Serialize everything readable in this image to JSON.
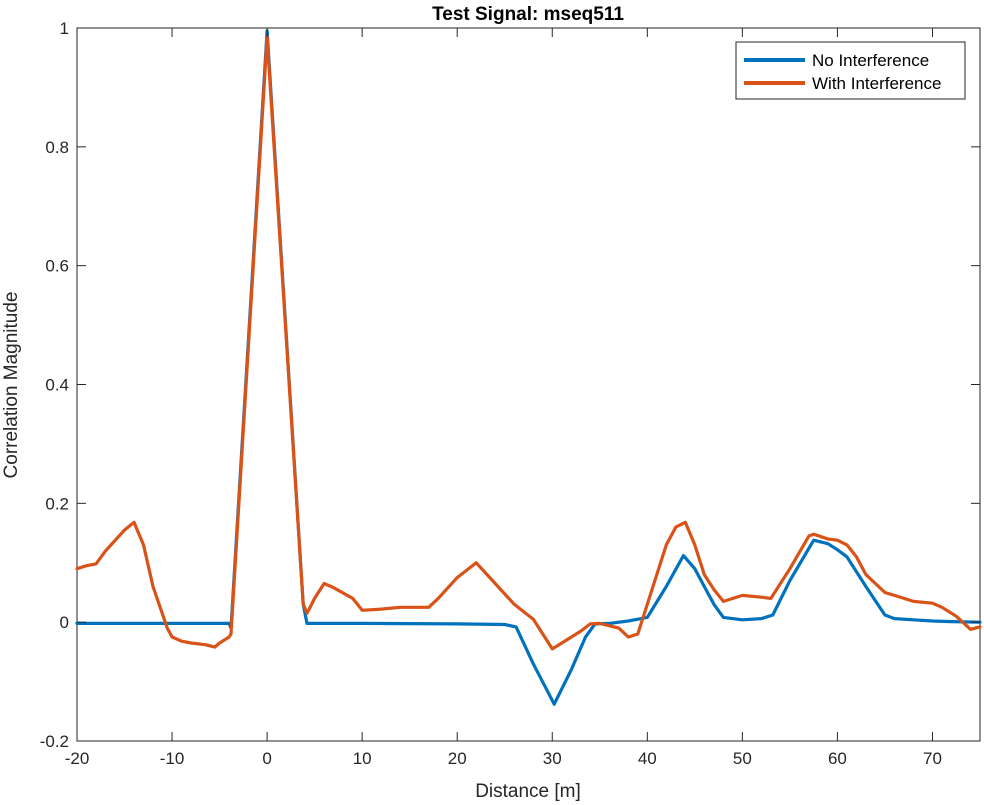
{
  "chart_data": {
    "type": "line",
    "title": "Test Signal: mseq511",
    "xlabel": "Distance [m]",
    "ylabel": "Correlation Magnitude",
    "xlim": [
      -20,
      75
    ],
    "ylim": [
      -0.2,
      1
    ],
    "xticks": [
      -20,
      -10,
      0,
      10,
      20,
      30,
      40,
      50,
      60,
      70
    ],
    "yticks": [
      -0.2,
      0,
      0.2,
      0.4,
      0.6,
      0.8,
      1
    ],
    "xtick_labels": [
      "-20",
      "-10",
      "0",
      "10",
      "20",
      "30",
      "40",
      "50",
      "60",
      "70"
    ],
    "ytick_labels": [
      "-0.2",
      "0",
      "0.2",
      "0.4",
      "0.6",
      "0.8",
      "1"
    ],
    "grid": false,
    "legend_position": "top-right",
    "series": [
      {
        "name": "No Interference",
        "color": "#0072BD",
        "x": [
          -20,
          -10,
          -4,
          -3.8,
          0,
          3.8,
          4.2,
          10,
          20,
          25,
          26.2,
          28,
          30.2,
          32,
          33.5,
          34.5,
          36,
          38,
          40,
          42,
          43.8,
          45,
          46,
          47,
          48,
          50,
          52,
          53.2,
          55,
          57.5,
          59,
          60,
          61,
          63,
          65,
          66,
          68,
          70,
          72,
          75
        ],
        "y": [
          -0.002,
          -0.002,
          -0.002,
          -0.01,
          0.995,
          0.03,
          -0.002,
          -0.002,
          -0.003,
          -0.004,
          -0.008,
          -0.07,
          -0.138,
          -0.08,
          -0.025,
          -0.003,
          -0.002,
          0.002,
          0.008,
          0.06,
          0.112,
          0.09,
          0.06,
          0.03,
          0.008,
          0.004,
          0.006,
          0.012,
          0.07,
          0.138,
          0.132,
          0.122,
          0.11,
          0.06,
          0.012,
          0.006,
          0.004,
          0.002,
          0.001,
          0.0
        ]
      },
      {
        "name": "With Interference",
        "color": "#D95319",
        "x": [
          -20,
          -19,
          -18,
          -17,
          -15,
          -14,
          -13,
          -12,
          -10.5,
          -10,
          -9,
          -8,
          -6.5,
          -5.5,
          -5,
          -4,
          -3.8,
          0,
          3.8,
          4.2,
          5,
          6,
          7,
          9,
          10,
          12,
          14,
          16,
          17,
          18,
          20,
          22,
          24,
          26,
          28,
          30,
          31,
          33,
          34,
          35,
          37,
          38,
          39,
          40,
          42,
          43,
          44,
          45,
          46,
          47,
          48,
          50,
          52,
          53,
          55,
          57,
          57.5,
          59,
          60,
          61,
          62,
          63,
          65,
          66,
          68,
          70,
          71,
          72.5,
          74,
          75
        ],
        "y": [
          0.09,
          0.095,
          0.098,
          0.12,
          0.155,
          0.168,
          0.13,
          0.06,
          -0.01,
          -0.025,
          -0.032,
          -0.035,
          -0.038,
          -0.042,
          -0.035,
          -0.025,
          -0.02,
          0.985,
          0.03,
          0.015,
          0.04,
          0.065,
          0.058,
          0.04,
          0.02,
          0.022,
          0.025,
          0.025,
          0.025,
          0.04,
          0.075,
          0.1,
          0.065,
          0.03,
          0.005,
          -0.045,
          -0.035,
          -0.015,
          -0.003,
          -0.002,
          -0.01,
          -0.025,
          -0.02,
          0.03,
          0.13,
          0.16,
          0.168,
          0.13,
          0.08,
          0.055,
          0.035,
          0.045,
          0.042,
          0.04,
          0.09,
          0.145,
          0.148,
          0.14,
          0.138,
          0.13,
          0.11,
          0.08,
          0.05,
          0.045,
          0.035,
          0.032,
          0.025,
          0.01,
          -0.012,
          -0.008
        ]
      }
    ]
  }
}
